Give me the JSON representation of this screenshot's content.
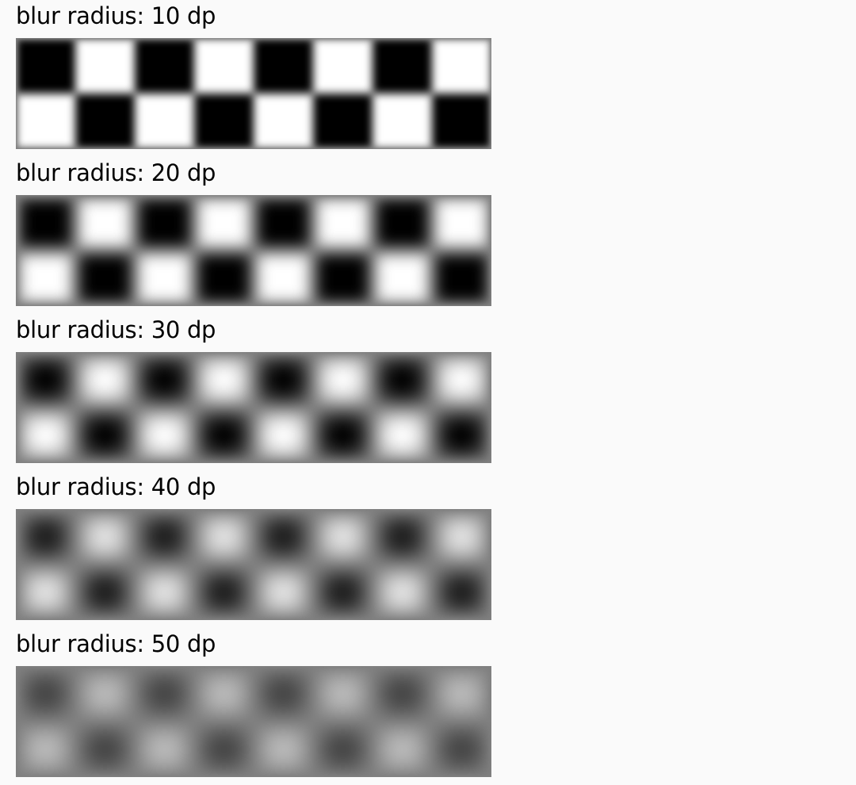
{
  "samples": [
    {
      "label": "blur radius: 10 dp",
      "radius_dp": 10
    },
    {
      "label": "blur radius: 20 dp",
      "radius_dp": 20
    },
    {
      "label": "blur radius: 30 dp",
      "radius_dp": 30
    },
    {
      "label": "blur radius: 40 dp",
      "radius_dp": 40
    },
    {
      "label": "blur radius: 50 dp",
      "radius_dp": 50
    }
  ],
  "checkerboard": {
    "columns": 8,
    "rows": 2,
    "first_cell": "dark",
    "dark_color": "#000000",
    "light_color": "#ffffff"
  }
}
